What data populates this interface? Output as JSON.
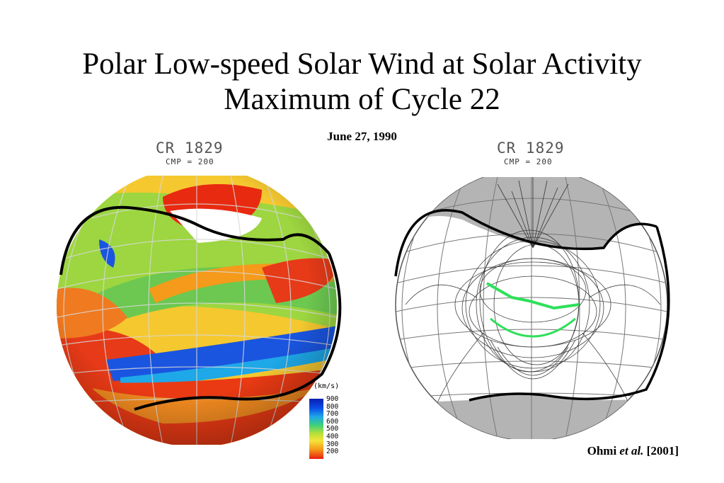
{
  "slide": {
    "title_line1": "Polar Low-speed Solar Wind at Solar Activity",
    "title_line2": "Maximum of Cycle 22",
    "date": "June 27, 1990",
    "left_panel": {
      "cr": "CR 1829",
      "cmp": "CMP = 200"
    },
    "right_panel": {
      "cr": "CR 1829",
      "cmp": "CMP = 200"
    },
    "legend": {
      "unit": "(km/s)",
      "ticks": [
        "900",
        "800",
        "700",
        "600",
        "500",
        "400",
        "300",
        "200"
      ]
    },
    "citation": {
      "author": "Ohmi",
      "etal": "et al.",
      "year": "[2001]"
    }
  }
}
